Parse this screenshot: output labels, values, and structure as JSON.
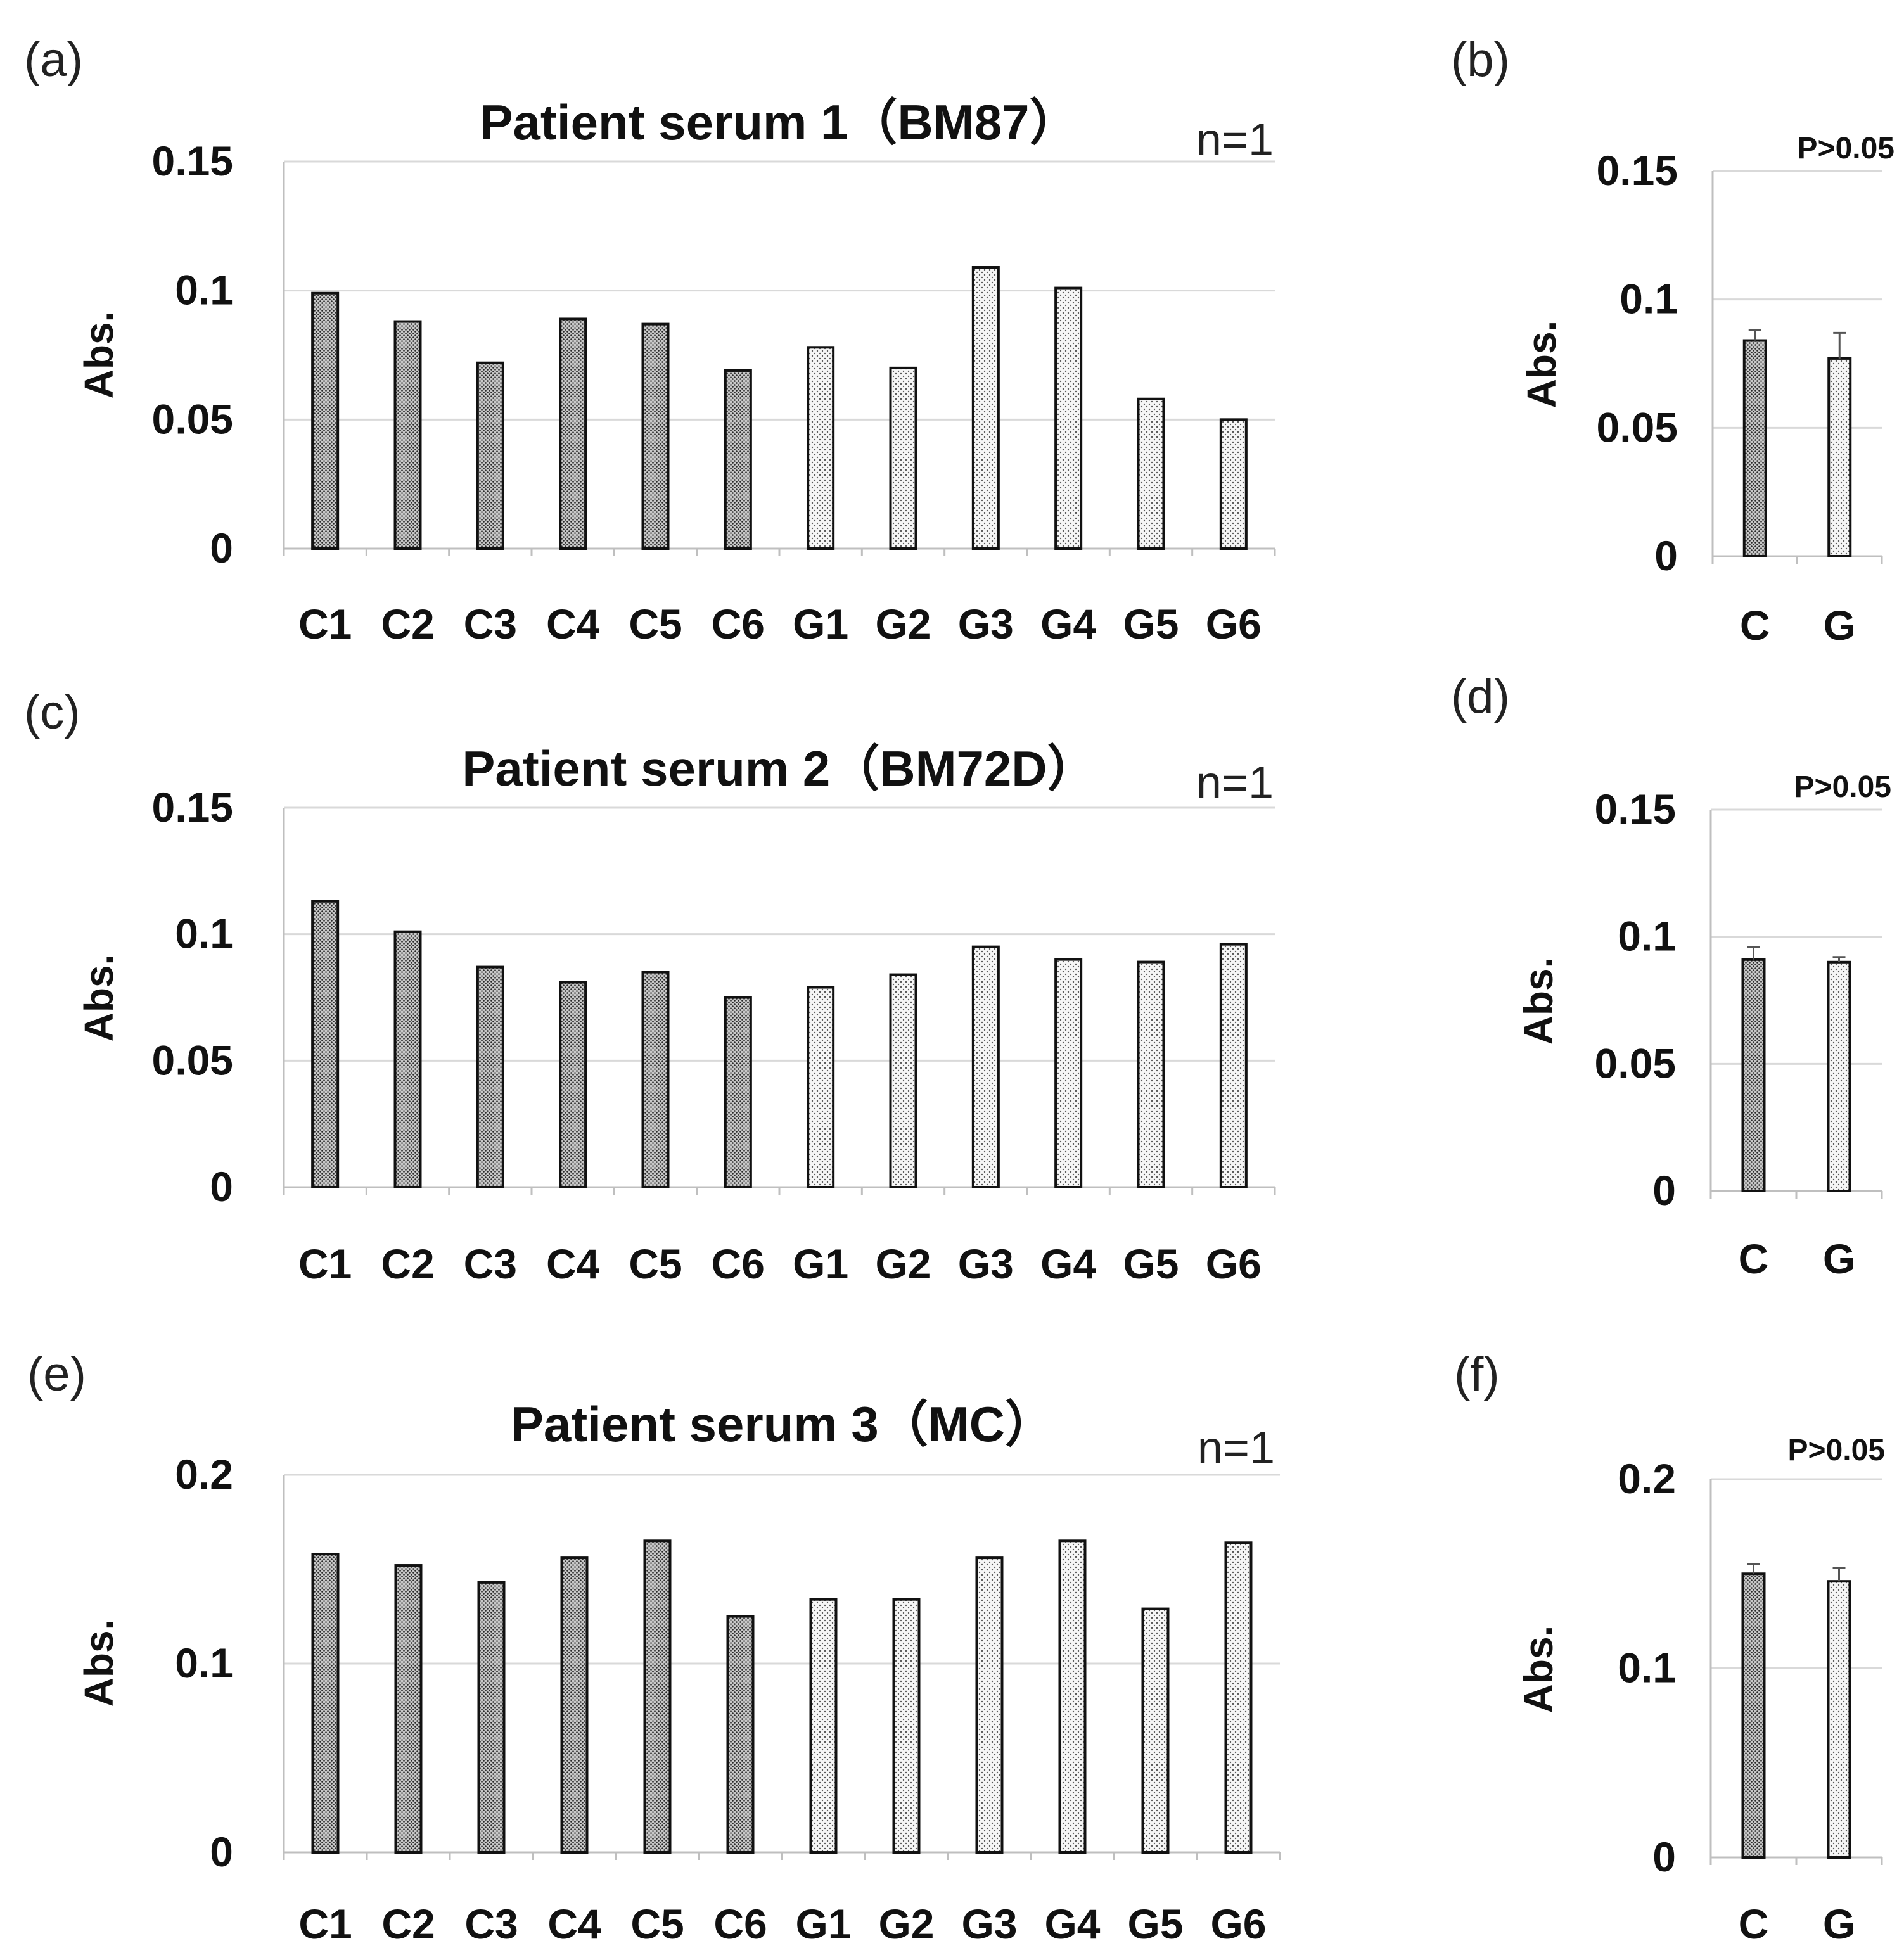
{
  "chart_data": [
    {
      "id": "a",
      "panel_label": "(a)",
      "type": "bar",
      "title": "Patient serum 1（BM87）",
      "annotation": "n=1",
      "ylabel": "Abs.",
      "ylim": [
        0,
        0.15
      ],
      "yticks": [
        "0",
        "0.05",
        "0.1",
        "0.15"
      ],
      "categories": [
        "C1",
        "C2",
        "C3",
        "C4",
        "C5",
        "C6",
        "G1",
        "G2",
        "G3",
        "G4",
        "G5",
        "G6"
      ],
      "values": [
        0.099,
        0.088,
        0.072,
        0.089,
        0.087,
        0.069,
        0.078,
        0.07,
        0.109,
        0.101,
        0.058,
        0.05
      ],
      "groups": [
        "C",
        "C",
        "C",
        "C",
        "C",
        "C",
        "G",
        "G",
        "G",
        "G",
        "G",
        "G"
      ]
    },
    {
      "id": "b",
      "panel_label": "(b)",
      "type": "bar",
      "annotation": "P>0.05",
      "ylabel": "Abs.",
      "ylim": [
        0,
        0.15
      ],
      "yticks": [
        "0",
        "0.05",
        "0.1",
        "0.15"
      ],
      "categories": [
        "C",
        "G"
      ],
      "values": [
        0.084,
        0.077
      ],
      "errors": [
        0.004,
        0.01
      ],
      "groups": [
        "C",
        "G"
      ]
    },
    {
      "id": "c",
      "panel_label": "(c)",
      "type": "bar",
      "title": "Patient serum 2（BM72D）",
      "annotation": "n=1",
      "ylabel": "Abs.",
      "ylim": [
        0,
        0.15
      ],
      "yticks": [
        "0",
        "0.05",
        "0.1",
        "0.15"
      ],
      "categories": [
        "C1",
        "C2",
        "C3",
        "C4",
        "C5",
        "C6",
        "G1",
        "G2",
        "G3",
        "G4",
        "G5",
        "G6"
      ],
      "values": [
        0.113,
        0.101,
        0.087,
        0.081,
        0.085,
        0.075,
        0.079,
        0.084,
        0.095,
        0.09,
        0.089,
        0.096
      ],
      "groups": [
        "C",
        "C",
        "C",
        "C",
        "C",
        "C",
        "G",
        "G",
        "G",
        "G",
        "G",
        "G"
      ]
    },
    {
      "id": "d",
      "panel_label": "(d)",
      "type": "bar",
      "annotation": "P>0.05",
      "ylabel": "Abs.",
      "ylim": [
        0,
        0.15
      ],
      "yticks": [
        "0",
        "0.05",
        "0.1",
        "0.15"
      ],
      "categories": [
        "C",
        "G"
      ],
      "values": [
        0.091,
        0.09
      ],
      "errors": [
        0.005,
        0.002
      ],
      "groups": [
        "C",
        "G"
      ]
    },
    {
      "id": "e",
      "panel_label": "(e)",
      "type": "bar",
      "title": "Patient serum 3（MC）",
      "annotation": "n=1",
      "ylabel": "Abs.",
      "ylim": [
        0,
        0.2
      ],
      "yticks": [
        "0",
        "0.1",
        "0.2"
      ],
      "categories": [
        "C1",
        "C2",
        "C3",
        "C4",
        "C5",
        "C6",
        "G1",
        "G2",
        "G3",
        "G4",
        "G5",
        "G6"
      ],
      "values": [
        0.158,
        0.152,
        0.143,
        0.156,
        0.165,
        0.125,
        0.134,
        0.134,
        0.156,
        0.165,
        0.129,
        0.164
      ],
      "groups": [
        "C",
        "C",
        "C",
        "C",
        "C",
        "C",
        "G",
        "G",
        "G",
        "G",
        "G",
        "G"
      ]
    },
    {
      "id": "f",
      "panel_label": "(f)",
      "type": "bar",
      "annotation": "P>0.05",
      "ylabel": "Abs.",
      "ylim": [
        0,
        0.2
      ],
      "yticks": [
        "0",
        "0.1",
        "0.2"
      ],
      "categories": [
        "C",
        "G"
      ],
      "values": [
        0.15,
        0.146
      ],
      "errors": [
        0.005,
        0.007
      ],
      "groups": [
        "C",
        "G"
      ]
    }
  ]
}
